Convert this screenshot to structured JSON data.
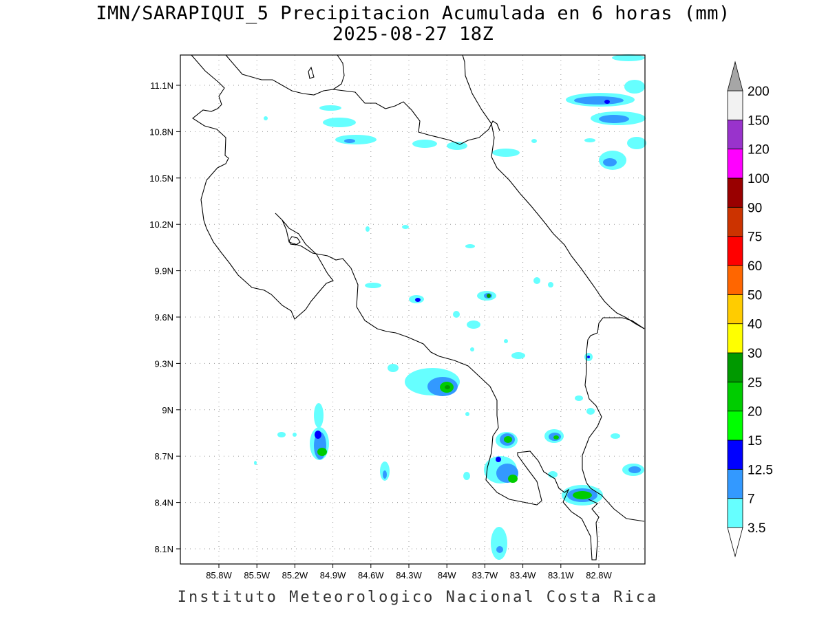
{
  "title": {
    "line1": "IMN/SARAPIQUI_5 Precipitacion Acumulada en 6 horas (mm)",
    "line2": "2025-08-27 18Z"
  },
  "credit": "Instituto Meteorologico Nacional Costa Rica",
  "map": {
    "lon_range": [
      -86.0,
      -83.0
    ],
    "lat_range": [
      8.0,
      11.3
    ],
    "lon_ticks": [
      {
        "label": "85.8W",
        "value": -85.8
      },
      {
        "label": "85.5W",
        "value": -85.5
      },
      {
        "label": "85.2W",
        "value": -85.2
      },
      {
        "label": "84.9W",
        "value": -84.9
      },
      {
        "label": "84.6W",
        "value": -84.6
      },
      {
        "label": "84.3W",
        "value": -84.3
      },
      {
        "label": "84W",
        "value": -84.0
      },
      {
        "label": "83.7W",
        "value": -83.7
      },
      {
        "label": "83.4W",
        "value": -83.4
      },
      {
        "label": "83.1W",
        "value": -83.1
      },
      {
        "label": "82.8W",
        "value": -82.8
      }
    ],
    "lat_ticks": [
      {
        "label": "11.1N",
        "value": 11.1
      },
      {
        "label": "10.8N",
        "value": 10.8
      },
      {
        "label": "10.5N",
        "value": 10.5
      },
      {
        "label": "10.2N",
        "value": 10.2
      },
      {
        "label": "9.9N",
        "value": 9.9
      },
      {
        "label": "9.6N",
        "value": 9.6
      },
      {
        "label": "9.3N",
        "value": 9.3
      },
      {
        "label": "9N",
        "value": 9.0
      },
      {
        "label": "8.7N",
        "value": 8.7
      },
      {
        "label": "8.4N",
        "value": 8.4
      },
      {
        "label": "8.1N",
        "value": 8.1
      }
    ],
    "gridlines": "dotted"
  },
  "colorbar": {
    "levels": [
      {
        "label": "3.5",
        "color": "#66ffff"
      },
      {
        "label": "7",
        "color": "#3399ff"
      },
      {
        "label": "12.5",
        "color": "#0000ff"
      },
      {
        "label": "15",
        "color": "#00ff00"
      },
      {
        "label": "20",
        "color": "#00cc00"
      },
      {
        "label": "25",
        "color": "#009900"
      },
      {
        "label": "30",
        "color": "#ffff00"
      },
      {
        "label": "40",
        "color": "#ffcc00"
      },
      {
        "label": "50",
        "color": "#ff6600"
      },
      {
        "label": "60",
        "color": "#ff0000"
      },
      {
        "label": "75",
        "color": "#cc3300"
      },
      {
        "label": "90",
        "color": "#990000"
      },
      {
        "label": "100",
        "color": "#ff00ff"
      },
      {
        "label": "120",
        "color": "#9933cc"
      },
      {
        "label": "150",
        "color": "#f2f2f2"
      },
      {
        "label": "200",
        "color": "#a6a6a6"
      }
    ],
    "below_color": "#ffffff",
    "above_color": "#a6a6a6"
  },
  "colors": {
    "light": "#66ffff",
    "mid": "#3399ff",
    "dark": "#0000ff",
    "green": "#00cc00",
    "green_dark": "#009900"
  }
}
